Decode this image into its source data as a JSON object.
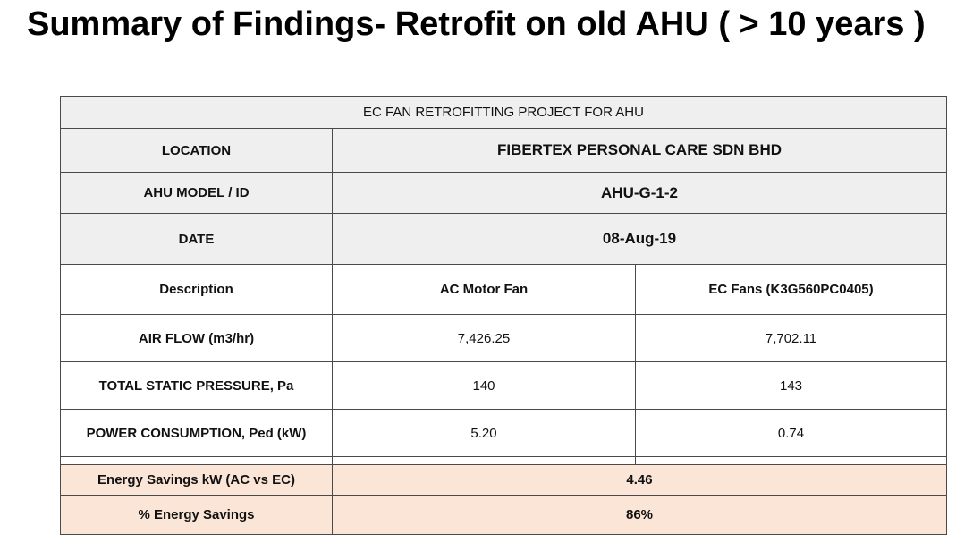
{
  "page": {
    "title": "Summary of Findings- Retrofit on old AHU ( > 10 years )"
  },
  "table": {
    "header": "EC FAN RETROFITTING PROJECT FOR AHU",
    "location": {
      "label": "LOCATION",
      "value": "FIBERTEX PERSONAL CARE SDN BHD"
    },
    "model": {
      "label": "AHU MODEL / ID",
      "value": "AHU-G-1-2"
    },
    "date": {
      "label": "DATE",
      "value": "08-Aug-19"
    },
    "columns": {
      "label": "Description",
      "ac": "AC Motor Fan",
      "ec": "EC Fans (K3G560PC0405)"
    },
    "rows": [
      {
        "label": "AIR FLOW (m3/hr)",
        "ac": "7,426.25",
        "ec": "7,702.11"
      },
      {
        "label": "TOTAL STATIC PRESSURE, Pa",
        "ac": "140",
        "ec": "143"
      },
      {
        "label": "POWER CONSUMPTION, Ped (kW)",
        "ac": "5.20",
        "ec": "0.74"
      }
    ],
    "savings_kw": {
      "label": "Energy Savings kW (AC vs EC)",
      "value": "4.46"
    },
    "savings_pct": {
      "label": "% Energy Savings",
      "value": "86%"
    }
  },
  "colors": {
    "header_bg": "#efefef",
    "savings_bg": "#fbe5d6",
    "border": "#4a4a4a"
  }
}
